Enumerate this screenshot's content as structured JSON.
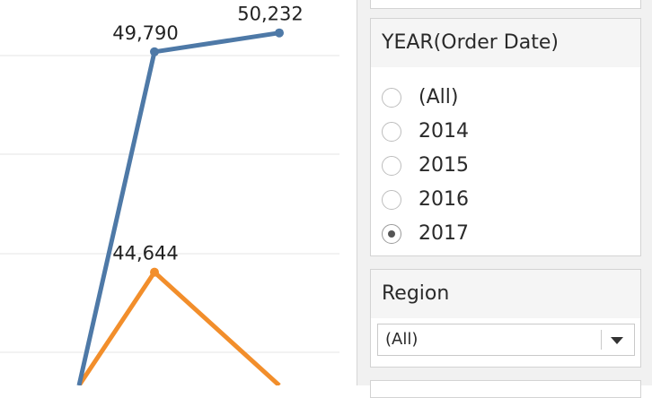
{
  "chart_data": {
    "type": "line",
    "series": [
      {
        "color": "#4e79a7",
        "values": [
          42000,
          49790,
          50232
        ],
        "labels": [
          "",
          "49,790",
          "50,232"
        ]
      },
      {
        "color": "#f28e2b",
        "values": [
          42000,
          44644,
          42000
        ],
        "labels": [
          "",
          "44,644",
          ""
        ]
      }
    ],
    "ylim": [
      42000,
      51000
    ],
    "grid": true
  },
  "filters": {
    "year": {
      "title": "YEAR(Order Date)",
      "options": [
        {
          "label": "(All)",
          "checked": false
        },
        {
          "label": "2014",
          "checked": false
        },
        {
          "label": "2015",
          "checked": false
        },
        {
          "label": "2016",
          "checked": false
        },
        {
          "label": "2017",
          "checked": true
        }
      ]
    },
    "region": {
      "title": "Region",
      "selected": "(All)"
    }
  }
}
